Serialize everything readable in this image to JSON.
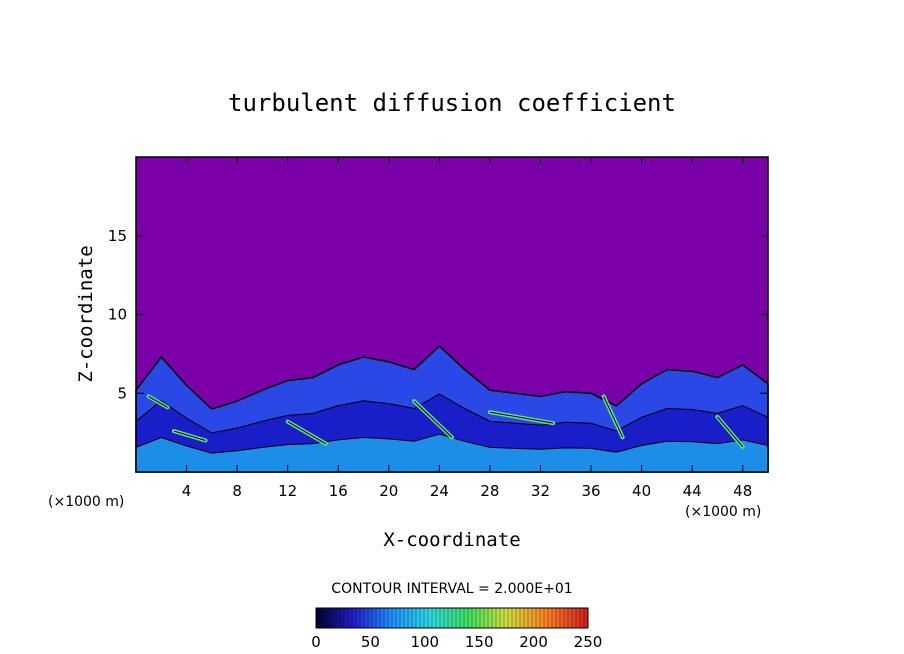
{
  "chart_data": {
    "type": "heatmap",
    "title": "turbulent diffusion coefficient",
    "xlabel": "X-coordinate",
    "ylabel": "Z-coordinate",
    "x_unit": "(×1000 m)",
    "y_unit": "(×1000 m)",
    "xlim": [
      0,
      50
    ],
    "ylim": [
      0,
      20
    ],
    "x_ticks": [
      "4",
      "8",
      "12",
      "16",
      "20",
      "24",
      "28",
      "32",
      "36",
      "40",
      "44",
      "48"
    ],
    "y_ticks": [
      "5",
      "10",
      "15"
    ],
    "contour_interval_label": "CONTOUR INTERVAL = 2.000E+01",
    "colorbar": {
      "min": 0,
      "max": 250,
      "tick_labels": [
        "0",
        "50",
        "100",
        "150",
        "200",
        "250"
      ],
      "colors": [
        "#000030",
        "#2020d0",
        "#2090ff",
        "#30d8e0",
        "#40e060",
        "#d0e040",
        "#ff8020",
        "#d02020"
      ]
    },
    "background_value": 0,
    "background_color": "#7a00a8",
    "turbulent_layer_top_km": [
      5.2,
      7.3,
      5.5,
      4.0,
      4.5,
      5.2,
      5.8,
      6.0,
      6.8,
      7.3,
      7.0,
      6.5,
      8.0,
      6.5,
      5.2,
      5.0,
      4.8,
      5.1,
      5.0,
      4.2,
      5.6,
      6.5,
      6.4,
      6.0,
      6.8,
      5.6
    ]
  }
}
